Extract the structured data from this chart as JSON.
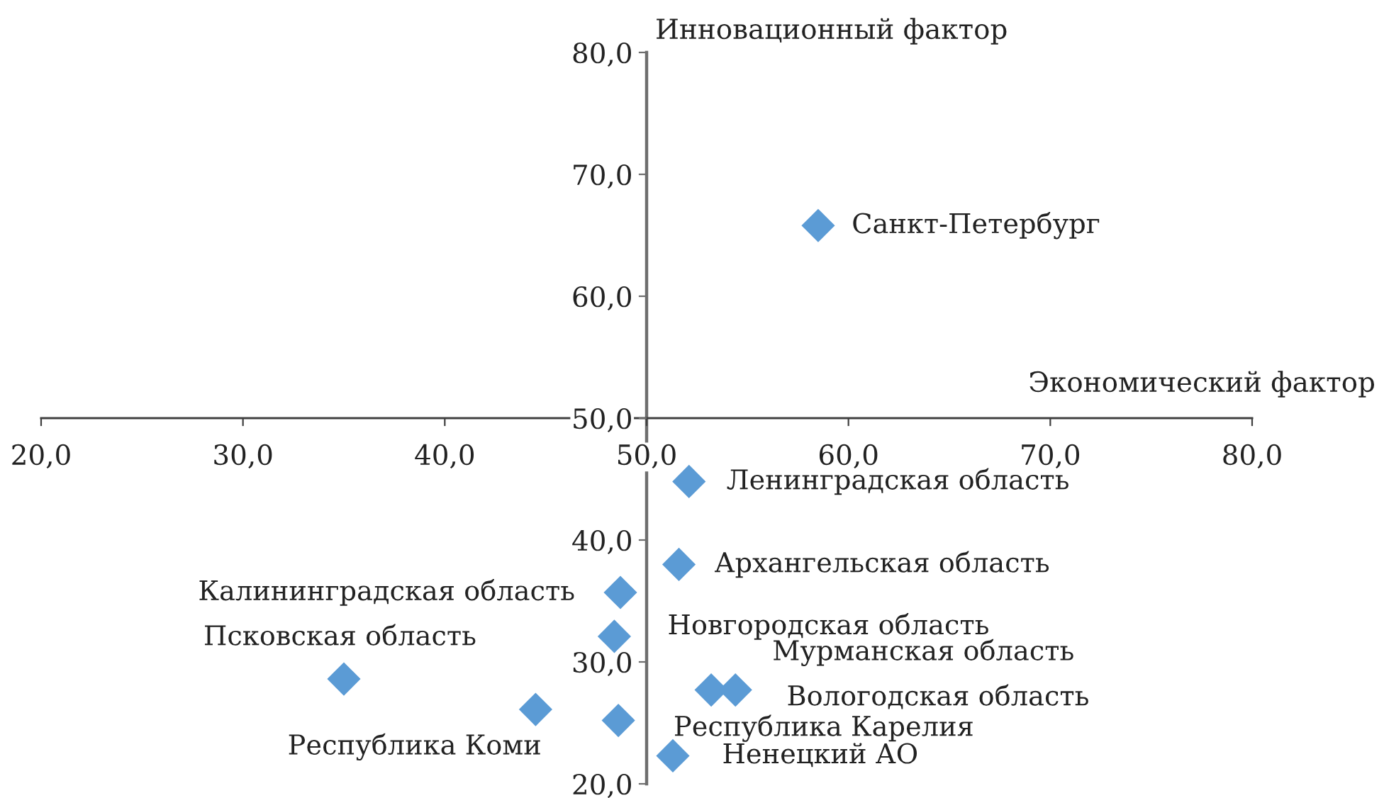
{
  "chart_data": {
    "type": "scatter",
    "xlabel": "Экономический фактор",
    "ylabel": "Инновационный фактор",
    "series": [
      {
        "color": "#5b9bd5",
        "x": [
          58.5,
          52.1,
          51.6,
          48.7,
          48.4,
          35.0,
          44.5,
          53.2,
          54.4,
          48.6,
          51.3
        ],
        "values": [
          65.8,
          44.8,
          38.0,
          35.7,
          32.1,
          28.6,
          26.1,
          27.7,
          27.7,
          25.2,
          22.3
        ]
      }
    ],
    "marker": "diamond",
    "xlim": [
      20,
      80
    ],
    "ylim": [
      20,
      80
    ],
    "xticks": [
      {
        "value": 20,
        "label": "20,0"
      },
      {
        "value": 30,
        "label": "30,0"
      },
      {
        "value": 40,
        "label": "40,0"
      },
      {
        "value": 50,
        "label": "50,0"
      },
      {
        "value": 60,
        "label": "60,0"
      },
      {
        "value": 70,
        "label": "70,0"
      },
      {
        "value": 80,
        "label": "80,0"
      }
    ],
    "yticks": [
      {
        "value": 20,
        "label": "20,0"
      },
      {
        "value": 30,
        "label": "30,0"
      },
      {
        "value": 40,
        "label": "40,0"
      },
      {
        "value": 50,
        "label": "50,0"
      },
      {
        "value": 60,
        "label": "60,0"
      },
      {
        "value": 70,
        "label": "70,0"
      },
      {
        "value": 80,
        "label": "80,0"
      }
    ],
    "annotations": [
      {
        "text": "Санкт-Петербург",
        "x": 58.5,
        "y": 65.8
      },
      {
        "text": "Ленинградская область",
        "x": 52.1,
        "y": 44.8
      },
      {
        "text": "Архангельская область",
        "x": 51.6,
        "y": 38.0
      },
      {
        "text": "Калининградская область",
        "x": 48.7,
        "y": 35.7
      },
      {
        "text": "Новгородская область",
        "x": 48.4,
        "y": 32.1
      },
      {
        "text": "Псковская область",
        "x": 35.0,
        "y": 28.6
      },
      {
        "text": "Республика Коми",
        "x": 44.5,
        "y": 26.1
      },
      {
        "text": "Мурманская область",
        "x": 53.2,
        "y": 27.7
      },
      {
        "text": "Вологодская область",
        "x": 54.4,
        "y": 27.7
      },
      {
        "text": "Республика Карелия",
        "x": 48.6,
        "y": 25.2
      },
      {
        "text": "Ненецкий АО",
        "x": 51.3,
        "y": 22.3
      }
    ]
  }
}
